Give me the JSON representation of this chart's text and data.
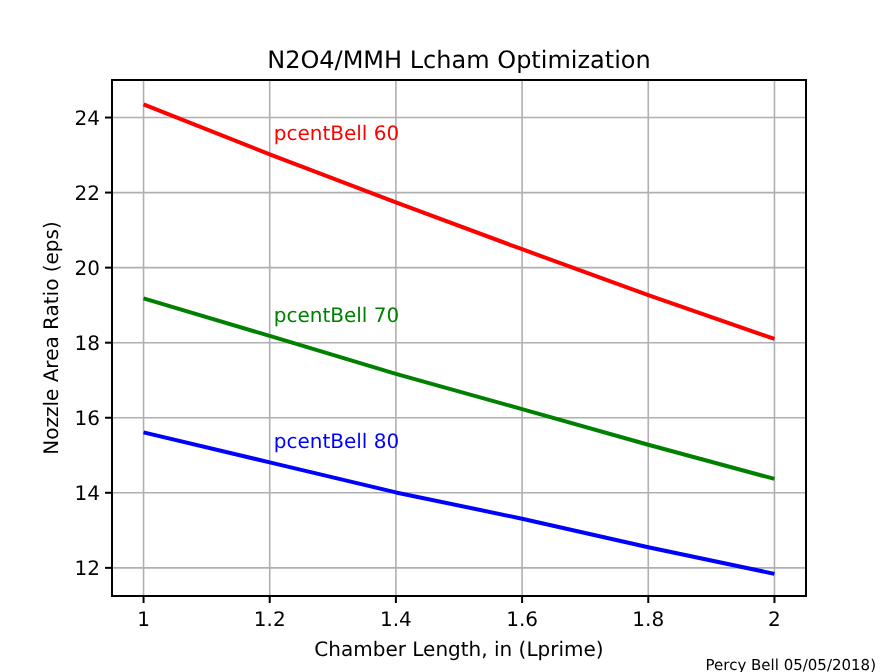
{
  "chart_data": {
    "type": "line",
    "title": "N2O4/MMH Lcham Optimization",
    "xlabel": "Chamber Length, in (Lprime)",
    "ylabel": "Nozzle Area Ratio (eps)",
    "x": [
      1,
      1.2,
      1.4,
      1.6,
      1.8,
      2
    ],
    "series": [
      {
        "name": "pcentBell 60",
        "color": "#ff0000",
        "values": [
          24.35,
          23.02,
          21.74,
          20.49,
          19.27,
          18.1
        ]
      },
      {
        "name": "pcentBell 70",
        "color": "#008000",
        "values": [
          19.18,
          18.18,
          17.17,
          16.23,
          15.28,
          14.37
        ]
      },
      {
        "name": "pcentBell 80",
        "color": "#0000ff",
        "values": [
          15.61,
          14.81,
          14.01,
          13.31,
          12.55,
          11.84
        ]
      }
    ],
    "annotations": [
      "Percy Bell 05/05/2018)"
    ],
    "xlim": [
      0.95,
      2.05
    ],
    "ylim": [
      11.25,
      25
    ],
    "xticks": [
      1,
      1.2,
      1.4,
      1.6,
      1.8,
      2
    ],
    "yticks": [
      12,
      14,
      16,
      18,
      20,
      22,
      24
    ],
    "grid": true,
    "marker": "none",
    "line_style": "solid"
  }
}
